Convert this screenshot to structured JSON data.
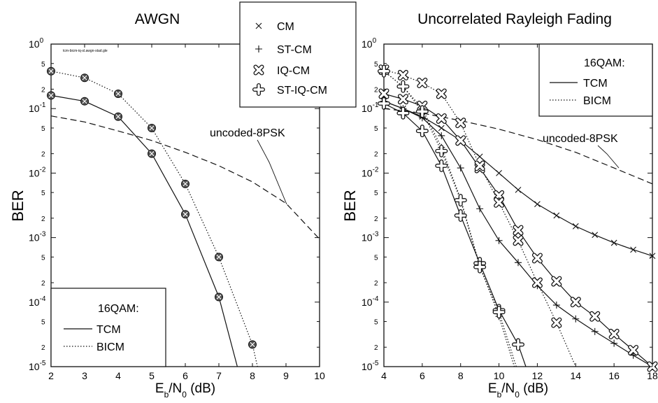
{
  "file_label": "tcm-bicm-iq-sl.awgn-stad.gle",
  "legend_codes": {
    "items": [
      {
        "label": "CM",
        "marker": "x"
      },
      {
        "label": "ST-CM",
        "marker": "plus"
      },
      {
        "label": "IQ-CM",
        "marker": "boldx"
      },
      {
        "label": "ST-IQ-CM",
        "marker": "boldplus"
      }
    ]
  },
  "chart_data": [
    {
      "type": "line",
      "title": "AWGN",
      "xlabel": "E_b/N_0 (dB)",
      "ylabel": "BER",
      "xlim": [
        2,
        10
      ],
      "ylim": [
        1e-05,
        1
      ],
      "yscale": "log",
      "xticks": [
        2,
        3,
        4,
        5,
        6,
        7,
        8,
        9,
        10
      ],
      "grid": false,
      "legend": {
        "title": "16QAM:",
        "placement": "bottom-left",
        "entries": [
          {
            "label": "TCM",
            "style": "solid"
          },
          {
            "label": "BICM",
            "style": "dotted"
          }
        ]
      },
      "annotations": [
        {
          "text": "uncoded-8PSK",
          "points_to": {
            "x": 8.6,
            "y": 0.0025
          }
        }
      ],
      "series": [
        {
          "group": "TCM",
          "style": "solid",
          "marker": "circled-x",
          "x": [
            2,
            3,
            4,
            5,
            6,
            7,
            7.55
          ],
          "y": [
            0.16,
            0.13,
            0.075,
            0.02,
            0.0023,
            0.00012,
            1e-05
          ]
        },
        {
          "group": "BICM",
          "style": "dotted",
          "marker": "circled-x",
          "x": [
            2,
            3,
            4,
            5,
            6,
            7,
            8,
            8.15
          ],
          "y": [
            0.38,
            0.3,
            0.17,
            0.05,
            0.0068,
            0.0005,
            2.2e-05,
            1e-05
          ]
        },
        {
          "group": "uncoded-8PSK",
          "style": "dashed",
          "marker": "none",
          "x": [
            2,
            3,
            4,
            5,
            6,
            7,
            8,
            9,
            10
          ],
          "y": [
            0.077,
            0.062,
            0.045,
            0.032,
            0.021,
            0.013,
            0.0073,
            0.0034,
            0.00095
          ]
        }
      ]
    },
    {
      "type": "line",
      "title": "Uncorrelated Rayleigh Fading",
      "xlabel": "E_b/N_0 (dB)",
      "ylabel": "BER",
      "xlim": [
        4,
        18
      ],
      "ylim": [
        1e-05,
        1
      ],
      "yscale": "log",
      "xticks": [
        4,
        6,
        8,
        10,
        12,
        14,
        16,
        18
      ],
      "grid": false,
      "legend": {
        "title": "16QAM:",
        "placement": "top-right",
        "entries": [
          {
            "label": "TCM",
            "style": "solid"
          },
          {
            "label": "BICM",
            "style": "dotted"
          }
        ]
      },
      "annotations": [
        {
          "text": "uncoded-8PSK",
          "points_to": {
            "x": 13.2,
            "y": 0.011
          }
        }
      ],
      "series": [
        {
          "group": "TCM",
          "code": "CM",
          "style": "solid",
          "marker": "x",
          "x": [
            4,
            5,
            6,
            7,
            8,
            9,
            10,
            11,
            12,
            13,
            14,
            15,
            16,
            17,
            18
          ],
          "y": [
            0.13,
            0.1,
            0.075,
            0.05,
            0.032,
            0.018,
            0.01,
            0.0055,
            0.0033,
            0.0022,
            0.0015,
            0.0011,
            0.00083,
            0.00065,
            0.00052
          ]
        },
        {
          "group": "TCM",
          "code": "ST-CM",
          "style": "solid",
          "marker": "plus",
          "x": [
            4,
            5,
            6,
            7,
            8,
            9,
            10,
            11,
            12,
            13,
            14,
            15,
            16,
            17,
            18
          ],
          "y": [
            0.13,
            0.1,
            0.072,
            0.038,
            0.012,
            0.0028,
            0.0009,
            0.00041,
            0.00018,
            9e-05,
            5.5e-05,
            3.5e-05,
            2.3e-05,
            1.5e-05,
            1e-05
          ]
        },
        {
          "group": "TCM",
          "code": "IQ-CM",
          "style": "solid",
          "marker": "boldx",
          "x": [
            4,
            5,
            6,
            7,
            8,
            9,
            10,
            11,
            12,
            13,
            14,
            15,
            16,
            17,
            18
          ],
          "y": [
            0.17,
            0.14,
            0.11,
            0.07,
            0.032,
            0.012,
            0.0045,
            0.0013,
            0.00048,
            0.00021,
            0.0001,
            6e-05,
            3.2e-05,
            1.8e-05,
            1e-05
          ]
        },
        {
          "group": "TCM",
          "code": "ST-IQ-CM",
          "style": "solid",
          "marker": "boldplus",
          "x": [
            4,
            5,
            6,
            7,
            8,
            9,
            10,
            11,
            11.4
          ],
          "y": [
            0.12,
            0.085,
            0.045,
            0.013,
            0.0022,
            0.0004,
            7.5e-05,
            2.2e-05,
            1e-05
          ]
        },
        {
          "group": "BICM",
          "code": "ST-CM",
          "style": "dotted",
          "marker": "plus",
          "x": [
            4,
            5,
            6,
            7,
            8,
            9,
            10,
            10.8
          ],
          "y": [
            0.38,
            0.22,
            0.1,
            0.025,
            0.004,
            0.00037,
            6e-05,
            1e-05
          ]
        },
        {
          "group": "BICM",
          "code": "IQ-CM",
          "style": "dotted",
          "marker": "boldx",
          "x": [
            4,
            5,
            6,
            7,
            8,
            9,
            10,
            11,
            12,
            13,
            14
          ],
          "y": [
            0.4,
            0.33,
            0.25,
            0.17,
            0.06,
            0.013,
            0.0035,
            0.0009,
            0.0002,
            4.8e-05,
            1e-05
          ]
        },
        {
          "group": "BICM",
          "code": "ST-IQ-CM",
          "style": "dotted",
          "marker": "boldplus",
          "x": [
            4,
            5,
            6,
            7,
            8,
            9,
            10,
            10.9
          ],
          "y": [
            0.38,
            0.22,
            0.09,
            0.022,
            0.0038,
            0.00035,
            7e-05,
            1e-05
          ]
        },
        {
          "group": "uncoded-8PSK",
          "style": "dashed",
          "marker": "none",
          "x": [
            4,
            6,
            8,
            10,
            12,
            14,
            16,
            18
          ],
          "y": [
            0.1,
            0.085,
            0.065,
            0.048,
            0.033,
            0.021,
            0.012,
            0.0068
          ]
        }
      ]
    }
  ]
}
